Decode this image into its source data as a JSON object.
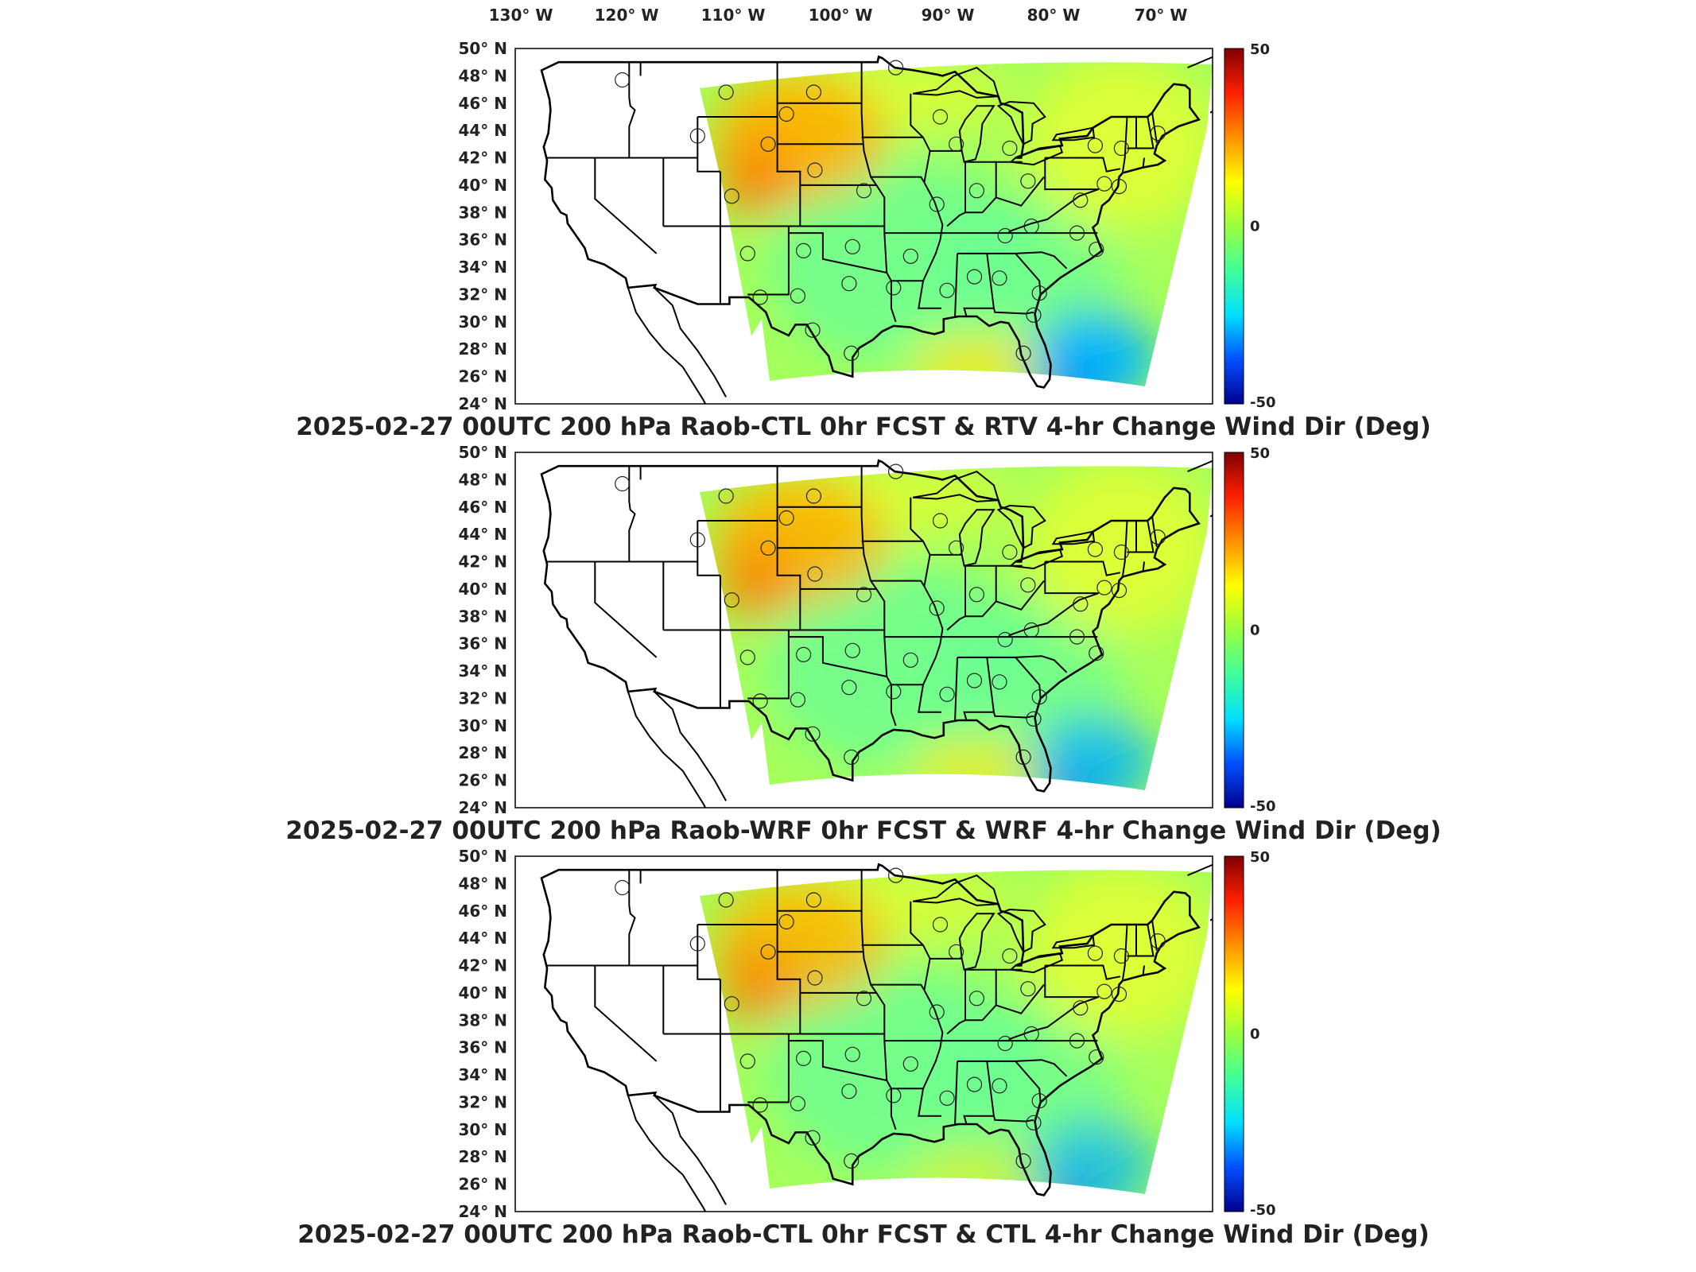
{
  "longitude_labels": [
    "130° W",
    "120° W",
    "110° W",
    "100° W",
    "90° W",
    "80° W",
    "70° W"
  ],
  "latitude_labels": [
    "50° N",
    "48° N",
    "46° N",
    "44° N",
    "42° N",
    "40° N",
    "38° N",
    "36° N",
    "34° N",
    "32° N",
    "30° N",
    "28° N",
    "26° N",
    "24° N"
  ],
  "colorbar": {
    "ticks": [
      "50",
      "0",
      "-50"
    ],
    "min": -50,
    "max": 50,
    "colors": [
      "#00008f",
      "#0050ff",
      "#00e0ff",
      "#40ff9a",
      "#9aff40",
      "#ffff00",
      "#ff9000",
      "#ff2000",
      "#800000"
    ]
  },
  "field_colors": {
    "domain_base": "#a6ff5a",
    "midwest": "#6cff93",
    "southeast_low": "#00b4ff",
    "plains_high": "#ffb000",
    "ne_yellow": "#e8ff30",
    "gulf_yellow": "#ffe800"
  },
  "panels": [
    {
      "title": "2025-02-27 00UTC 200 hPa Raob-CTL 0hr FCST & RTV 4-hr Change Wind Dir (Deg)",
      "plains_intensity": 1.0,
      "se_intensity": 1.0,
      "gulf_intensity": 1.0
    },
    {
      "title": "2025-02-27 00UTC 200 hPa Raob-WRF 0hr FCST & WRF 4-hr Change Wind Dir (Deg)",
      "plains_intensity": 0.95,
      "se_intensity": 0.85,
      "gulf_intensity": 0.9
    },
    {
      "title": "2025-02-27 00UTC 200 hPa Raob-CTL 0hr FCST & CTL 4-hr Change Wind Dir (Deg)",
      "plains_intensity": 0.9,
      "se_intensity": 0.75,
      "gulf_intensity": 0.6
    }
  ]
}
